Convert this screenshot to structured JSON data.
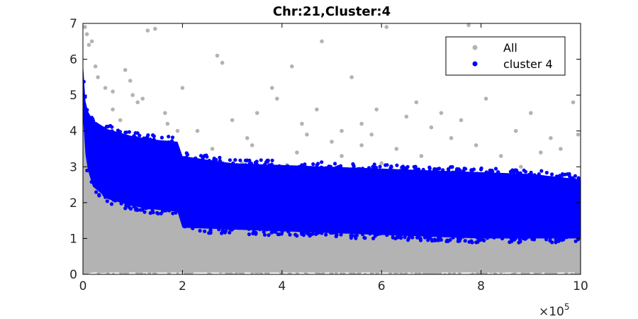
{
  "chart_data": {
    "type": "scatter",
    "title": "Chr:21,Cluster:4",
    "xlabel": "",
    "ylabel": "",
    "xlim": [
      0,
      1000000
    ],
    "ylim": [
      0,
      7
    ],
    "x_ticks": [
      0,
      200000,
      400000,
      600000,
      800000,
      1000000
    ],
    "x_tick_labels": [
      "0",
      "2",
      "4",
      "6",
      "8",
      "10"
    ],
    "x_exponent_label": {
      "base": "×10",
      "power": "5"
    },
    "y_ticks": [
      0,
      1,
      2,
      3,
      4,
      5,
      6,
      7
    ],
    "y_tick_labels": [
      "0",
      "1",
      "2",
      "3",
      "4",
      "5",
      "6",
      "7"
    ],
    "grid": false,
    "legend_position": "top-right",
    "series": [
      {
        "name": "All",
        "color": "#b3b3b3",
        "band": {
          "x": [
            0,
            5000,
            20000,
            50000,
            100000,
            150000,
            190000,
            200000,
            300000,
            400000,
            500000,
            600000,
            700000,
            800000,
            900000,
            1000000
          ],
          "upper": [
            4.5,
            3.8,
            3.0,
            2.5,
            2.15,
            1.95,
            1.85,
            1.4,
            1.35,
            1.35,
            1.3,
            1.25,
            1.2,
            1.15,
            1.15,
            1.15
          ],
          "lower": [
            0.0,
            0.0,
            0.05,
            0.05,
            0.05,
            0.05,
            0.05,
            0.05,
            0.05,
            0.05,
            0.05,
            0.05,
            0.05,
            0.05,
            0.05,
            0.05
          ]
        },
        "outliers": [
          [
            4000,
            6.9
          ],
          [
            8000,
            6.7
          ],
          [
            12000,
            6.4
          ],
          [
            18000,
            6.5
          ],
          [
            25000,
            5.8
          ],
          [
            30000,
            5.5
          ],
          [
            45000,
            5.2
          ],
          [
            60000,
            5.1
          ],
          [
            85000,
            5.7
          ],
          [
            100000,
            5.0
          ],
          [
            110000,
            4.8
          ],
          [
            130000,
            6.8
          ],
          [
            145000,
            6.85
          ],
          [
            165000,
            4.5
          ],
          [
            200000,
            5.2
          ],
          [
            230000,
            4.0
          ],
          [
            270000,
            6.1
          ],
          [
            280000,
            5.9
          ],
          [
            300000,
            4.3
          ],
          [
            330000,
            3.8
          ],
          [
            350000,
            4.5
          ],
          [
            380000,
            5.2
          ],
          [
            390000,
            4.9
          ],
          [
            420000,
            5.8
          ],
          [
            440000,
            4.2
          ],
          [
            450000,
            3.9
          ],
          [
            470000,
            4.6
          ],
          [
            480000,
            6.5
          ],
          [
            500000,
            3.7
          ],
          [
            520000,
            4.0
          ],
          [
            540000,
            5.5
          ],
          [
            560000,
            4.2
          ],
          [
            580000,
            3.9
          ],
          [
            610000,
            6.9
          ],
          [
            630000,
            3.5
          ],
          [
            650000,
            4.4
          ],
          [
            670000,
            4.8
          ],
          [
            700000,
            4.1
          ],
          [
            720000,
            4.5
          ],
          [
            740000,
            3.8
          ],
          [
            760000,
            4.3
          ],
          [
            775000,
            6.95
          ],
          [
            790000,
            3.6
          ],
          [
            810000,
            4.9
          ],
          [
            840000,
            3.3
          ],
          [
            870000,
            4.0
          ],
          [
            900000,
            4.5
          ],
          [
            920000,
            3.4
          ],
          [
            940000,
            3.8
          ],
          [
            960000,
            3.5
          ],
          [
            985000,
            4.8
          ],
          [
            995000,
            3.9
          ],
          [
            240000,
            3.2
          ],
          [
            320000,
            3.1
          ],
          [
            410000,
            3.05
          ],
          [
            600000,
            3.1
          ],
          [
            680000,
            3.3
          ],
          [
            880000,
            3.0
          ],
          [
            60000,
            4.6
          ],
          [
            75000,
            4.3
          ],
          [
            95000,
            5.4
          ],
          [
            120000,
            4.9
          ],
          [
            170000,
            4.2
          ],
          [
            190000,
            4.0
          ],
          [
            260000,
            3.5
          ],
          [
            340000,
            3.6
          ],
          [
            430000,
            3.4
          ],
          [
            520000,
            3.3
          ],
          [
            560000,
            3.6
          ],
          [
            590000,
            4.6
          ],
          [
            0,
            0.25
          ],
          [
            0,
            0.55
          ],
          [
            0,
            0.9
          ],
          [
            150000,
            0.15
          ],
          [
            400000,
            0.3
          ],
          [
            700000,
            0.25
          ],
          [
            850000,
            0.3
          ],
          [
            250000,
            0.25
          ],
          [
            550000,
            0.25
          ],
          [
            980000,
            0.2
          ],
          [
            1000000,
            0.45
          ],
          [
            1000000,
            0.7
          ],
          [
            0,
            1.2
          ],
          [
            2000,
            2.0
          ],
          [
            5000,
            3.3
          ],
          [
            10000,
            3.5
          ],
          [
            15000,
            3.2
          ],
          [
            20000,
            3.9
          ]
        ]
      },
      {
        "name": "cluster 4",
        "color": "#0000ff",
        "band": {
          "x": [
            0,
            3000,
            8000,
            20000,
            50000,
            100000,
            150000,
            190000,
            200000,
            300000,
            400000,
            500000,
            600000,
            700000,
            800000,
            900000,
            1000000
          ],
          "upper": [
            5.9,
            5.0,
            4.6,
            4.3,
            4.05,
            3.85,
            3.75,
            3.7,
            3.3,
            3.1,
            3.05,
            3.0,
            2.95,
            2.9,
            2.85,
            2.8,
            2.65
          ],
          "lower": [
            4.4,
            3.6,
            3.0,
            2.45,
            2.1,
            1.9,
            1.8,
            1.75,
            1.3,
            1.25,
            1.2,
            1.15,
            1.1,
            1.05,
            1.0,
            1.0,
            1.0
          ]
        }
      }
    ]
  },
  "legend": {
    "items": [
      {
        "label": "All",
        "color": "#b3b3b3"
      },
      {
        "label": "cluster 4",
        "color": "#0000ff"
      }
    ]
  }
}
